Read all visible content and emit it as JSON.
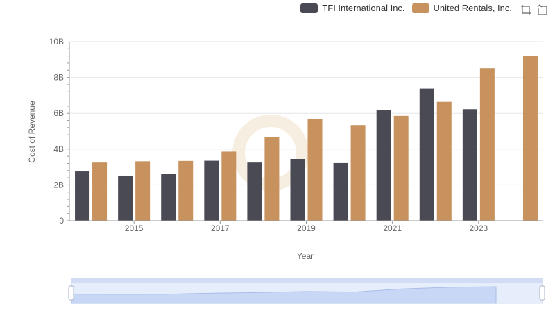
{
  "chart_data": {
    "type": "bar",
    "title": "",
    "xlabel": "Year",
    "ylabel": "Cost of Revenue",
    "ylim": [
      0,
      10000000000
    ],
    "yticks": [
      "0",
      "2B",
      "4B",
      "6B",
      "8B",
      "10B"
    ],
    "categories": [
      "2014",
      "2015",
      "2016",
      "2017",
      "2018",
      "2019",
      "2020",
      "2021",
      "2022",
      "2023",
      "2024"
    ],
    "xtick_labels": [
      "2015",
      "2017",
      "2019",
      "2021",
      "2023"
    ],
    "legend_position": "top-right",
    "grid": true,
    "series": [
      {
        "name": "TFI International Inc.",
        "color": "#4a4a55",
        "values": [
          2750000000,
          2520000000,
          2620000000,
          3350000000,
          3250000000,
          3450000000,
          3220000000,
          6170000000,
          7380000000,
          6230000000,
          null
        ]
      },
      {
        "name": "United Rentals, Inc.",
        "color": "#c8925e",
        "values": [
          3250000000,
          3320000000,
          3340000000,
          3860000000,
          4680000000,
          5680000000,
          5340000000,
          5860000000,
          6640000000,
          8520000000,
          9190000000
        ]
      }
    ]
  },
  "toolbar": {
    "zoom_icon": "zoom-select-icon",
    "reset_icon": "restore-icon"
  }
}
